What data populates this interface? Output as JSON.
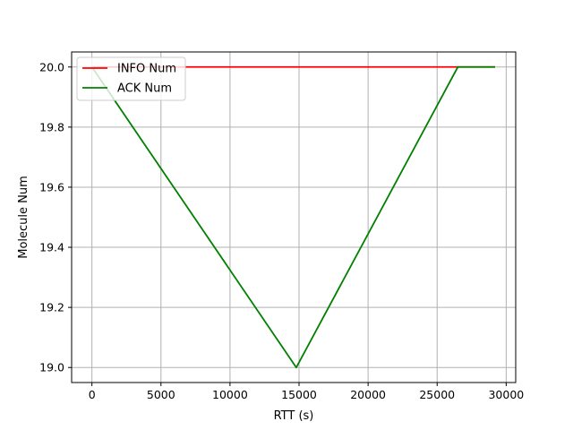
{
  "chart_data": {
    "type": "line",
    "title": "",
    "xlabel": "RTT (s)",
    "ylabel": "Molecule Num",
    "xlim": [
      -1470,
      30690
    ],
    "ylim": [
      18.95,
      20.05
    ],
    "xticks": [
      0,
      5000,
      10000,
      15000,
      20000,
      25000,
      30000
    ],
    "yticks": [
      19.0,
      19.2,
      19.4,
      19.6,
      19.8,
      20.0
    ],
    "xtick_labels": [
      "0",
      "5000",
      "10000",
      "15000",
      "20000",
      "25000",
      "30000"
    ],
    "ytick_labels": [
      "19.0",
      "19.2",
      "19.4",
      "19.6",
      "19.8",
      "20.0"
    ],
    "grid": true,
    "legend_position": "upper-left",
    "series": [
      {
        "name": "INFO Num",
        "color": "#ff0000",
        "x": [
          0,
          29200
        ],
        "y": [
          20.0,
          20.0
        ]
      },
      {
        "name": "ACK Num",
        "color": "#008000",
        "x": [
          0,
          14800,
          26500,
          29200
        ],
        "y": [
          20.0,
          19.0,
          20.0,
          20.0
        ]
      }
    ]
  }
}
